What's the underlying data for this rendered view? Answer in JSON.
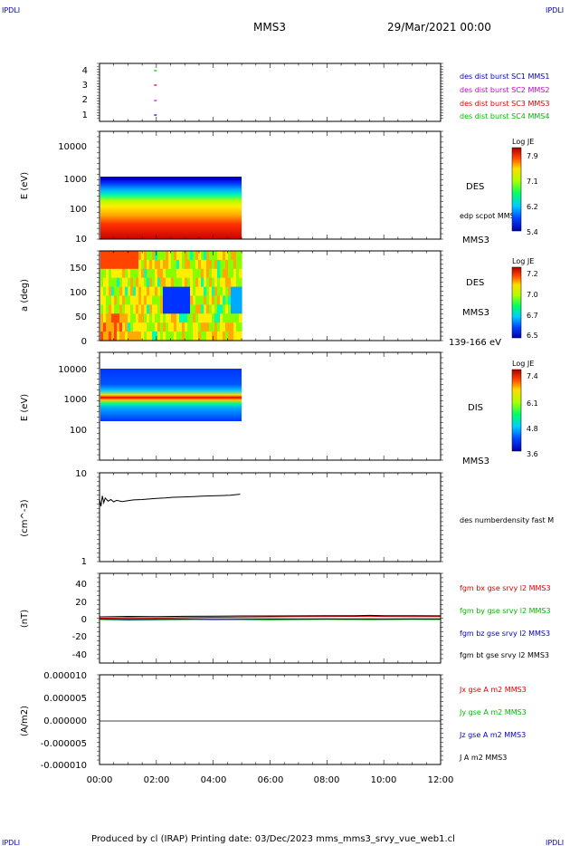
{
  "corner_labels": {
    "top_left": "IPDLI",
    "top_right": "IPDLI",
    "bottom_left": "IPDLI",
    "bottom_right": "IPDLI"
  },
  "header": {
    "spacecraft": "MMS3",
    "date": "29/Mar/2021 00:00"
  },
  "footer": {
    "text": "Produced by cl (IRAP)   Printing date: 03/Dec/2023   mms_mms3_srvy_vue_web1.cl"
  },
  "time_axis": {
    "labels": [
      "00:00",
      "02:00",
      "04:00",
      "06:00",
      "08:00",
      "10:00",
      "12:00"
    ]
  },
  "colors": {
    "blue": "#0000cc",
    "magenta": "#cc00cc",
    "red": "#dd0000",
    "green": "#00bb00",
    "black": "#000000"
  },
  "chart_data": [
    {
      "type": "scatter",
      "title": "burst availability",
      "ylabel": "",
      "yticks": [
        "4",
        "3",
        "2",
        "1"
      ],
      "series": [
        {
          "name": "des dist burst SC1 MMS1",
          "color": "#0000cc"
        },
        {
          "name": "des dist burst SC2 MMS2",
          "color": "#cc00cc"
        },
        {
          "name": "des dist burst SC3 MMS3",
          "color": "#dd0000"
        },
        {
          "name": "des dist burst SC4 MMS4",
          "color": "#00bb00"
        }
      ],
      "x_hours": 1.95
    },
    {
      "type": "heatmap",
      "ylabel": "E (eV)",
      "yticks": [
        "10000",
        "1000",
        "100",
        "10"
      ],
      "ylim": [
        10,
        20000
      ],
      "xlim_hours": [
        0,
        4.95
      ],
      "instrument": "DES",
      "extra_label": "edp scpot MMS3",
      "spacecraft_label": "MMS3",
      "colorbar": {
        "title": "Log JE",
        "ticks": [
          "7.9",
          "7.1",
          "6.2",
          "5.4"
        ]
      }
    },
    {
      "type": "heatmap",
      "ylabel": "a (deg)",
      "yticks": [
        "150",
        "100",
        "50",
        "0"
      ],
      "ylim": [
        0,
        180
      ],
      "xlim_hours": [
        0,
        4.95
      ],
      "instrument": "DES",
      "spacecraft_label": "MMS3",
      "energy_band": "139-166 eV",
      "colorbar": {
        "title": "Log JE",
        "ticks": [
          "7.2",
          "7.0",
          "6.7",
          "6.5"
        ]
      }
    },
    {
      "type": "heatmap",
      "ylabel": "E (eV)",
      "yticks": [
        "10000",
        "1000",
        "100"
      ],
      "ylim": [
        10,
        20000
      ],
      "xlim_hours": [
        0,
        4.95
      ],
      "instrument": "DIS",
      "spacecraft_label": "MMS3",
      "colorbar": {
        "title": "Log JE",
        "ticks": [
          "7.4",
          "6.1",
          "4.8",
          "3.6"
        ]
      }
    },
    {
      "type": "line",
      "ylabel": "(cm^-3)",
      "yticks": [
        "10",
        "1"
      ],
      "ylim": [
        1,
        10
      ],
      "series": [
        {
          "name": "des numberdensity fast M",
          "color": "#000000",
          "x": [
            0,
            0.05,
            0.1,
            0.15,
            0.2,
            0.3,
            0.4,
            0.5,
            0.6,
            0.8,
            1.0,
            1.2,
            1.5,
            1.8,
            2.0,
            2.3,
            2.6,
            3.0,
            3.3,
            3.6,
            4.0,
            4.3,
            4.6,
            4.95
          ],
          "y": [
            5.0,
            4.2,
            5.5,
            4.6,
            5.2,
            4.8,
            5.0,
            4.7,
            4.9,
            4.75,
            4.85,
            4.95,
            5.0,
            5.1,
            5.15,
            5.2,
            5.3,
            5.35,
            5.4,
            5.45,
            5.5,
            5.55,
            5.6,
            5.75
          ]
        }
      ]
    },
    {
      "type": "line",
      "ylabel": "(nT)",
      "yticks": [
        "40",
        "20",
        "0",
        "-20",
        "-40"
      ],
      "ylim": [
        -50,
        50
      ],
      "series": [
        {
          "name": "fgm bx gse srvy l2 MMS3",
          "color": "#dd0000"
        },
        {
          "name": "fgm by gse srvy l2 MMS3",
          "color": "#00bb00"
        },
        {
          "name": "fgm bz gse srvy l2 MMS3",
          "color": "#0000cc"
        },
        {
          "name": "fgm bt gse srvy l2 MMS3",
          "color": "#000000"
        }
      ],
      "x": [
        0,
        1,
        2,
        3,
        4,
        5,
        6,
        7,
        8,
        9,
        9.5,
        10,
        11,
        12
      ],
      "bx": [
        0.5,
        1.0,
        0.8,
        1.2,
        1.5,
        1.8,
        2.0,
        2.2,
        2.4,
        2.5,
        2.6,
        2.4,
        2.3,
        2.2
      ],
      "by": [
        -1.0,
        -1.5,
        -1.2,
        -1.0,
        -0.8,
        -1.0,
        -1.2,
        -1.0,
        -0.9,
        -1.0,
        -1.1,
        -1.0,
        -0.9,
        -1.0
      ],
      "bz": [
        -0.5,
        -1.0,
        -0.8,
        -0.5,
        -1.0,
        -0.8,
        -0.5,
        -0.6,
        -0.4,
        -0.5,
        -0.5,
        -0.6,
        -0.4,
        -0.5
      ],
      "bt": [
        2.0,
        2.5,
        2.2,
        2.6,
        2.8,
        3.0,
        3.0,
        3.1,
        3.2,
        3.3,
        3.6,
        3.2,
        3.2,
        3.1
      ]
    },
    {
      "type": "line",
      "ylabel": "(A/m2)",
      "yticks": [
        "0.000010",
        "0.000005",
        "0.000000",
        "-0.000005",
        "-0.000010"
      ],
      "ylim": [
        -1e-05,
        1e-05
      ],
      "series": [
        {
          "name": "Jx gse A m2 MMS3",
          "color": "#dd0000"
        },
        {
          "name": "Jy gse A m2 MMS3",
          "color": "#00bb00"
        },
        {
          "name": "Jz gse A m2 MMS3",
          "color": "#0000cc"
        },
        {
          "name": "J A m2 MMS3",
          "color": "#000000"
        }
      ],
      "x": [
        0,
        12
      ],
      "y": [
        0,
        0
      ]
    }
  ]
}
